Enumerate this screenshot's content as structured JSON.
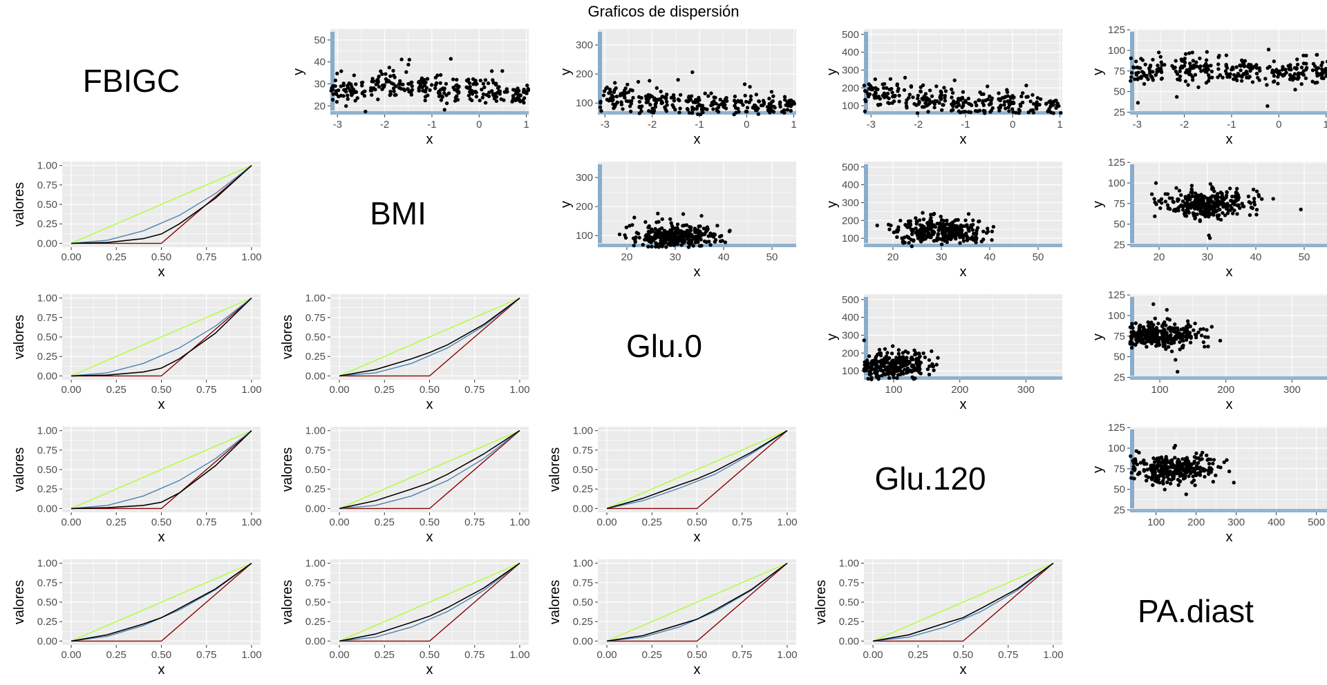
{
  "title": "Graficos de dispersión",
  "variables": [
    "FBIGC",
    "BMI",
    "Glu.0",
    "Glu.120",
    "PA.diast"
  ],
  "colors": {
    "panel_bg": "#EBEBEB",
    "grid": "#FFFFFF",
    "points": "#000000",
    "rug": "#4682B4",
    "line_equality": "#ADFF2F",
    "line_perfect": "#8B0000",
    "line_reference": "#4682B4",
    "line_empirical": "#000000"
  },
  "chart_data": [
    {
      "type": "scatter",
      "panel": "FBIGC-BMI",
      "xlabel": "x",
      "ylabel": "y",
      "x_ticks": [
        "-3",
        "-2",
        "-1",
        "0",
        "1"
      ],
      "y_ticks": [
        "20",
        "30",
        "40",
        "50"
      ],
      "xlim": [
        -3.15,
        1.05
      ],
      "ylim": [
        16,
        55
      ],
      "clusters": [
        {
          "x": -3,
          "y": 27
        },
        {
          "x": -2,
          "y": 30
        },
        {
          "x": -1,
          "y": 28
        },
        {
          "x": 0,
          "y": 27
        },
        {
          "x": 1,
          "y": 25
        }
      ]
    },
    {
      "type": "scatter",
      "panel": "FBIGC-Glu.0",
      "xlabel": "x",
      "ylabel": "y",
      "x_ticks": [
        "-3",
        "-2",
        "-1",
        "0",
        "1"
      ],
      "y_ticks": [
        "100",
        "200",
        "300"
      ],
      "xlim": [
        -3.15,
        1.05
      ],
      "ylim": [
        60,
        355
      ],
      "clusters": [
        {
          "x": -3,
          "y": 110
        },
        {
          "x": -2,
          "y": 100
        },
        {
          "x": -1,
          "y": 95
        },
        {
          "x": 0,
          "y": 90
        },
        {
          "x": 1,
          "y": 85
        }
      ]
    },
    {
      "type": "scatter",
      "panel": "FBIGC-Glu.120",
      "xlabel": "x",
      "ylabel": "y",
      "x_ticks": [
        "-3",
        "-2",
        "-1",
        "0",
        "1"
      ],
      "y_ticks": [
        "100",
        "200",
        "300",
        "400",
        "500"
      ],
      "xlim": [
        -3.15,
        1.05
      ],
      "ylim": [
        50,
        530
      ],
      "clusters": [
        {
          "x": -3,
          "y": 160
        },
        {
          "x": -2,
          "y": 140
        },
        {
          "x": -1,
          "y": 120
        },
        {
          "x": 0,
          "y": 115
        },
        {
          "x": 1,
          "y": 110
        }
      ]
    },
    {
      "type": "scatter",
      "panel": "FBIGC-PA.diast",
      "xlabel": "x",
      "ylabel": "y",
      "x_ticks": [
        "-3",
        "-2",
        "-1",
        "0",
        "1"
      ],
      "y_ticks": [
        "25",
        "50",
        "75",
        "100",
        "125"
      ],
      "xlim": [
        -3.15,
        1.05
      ],
      "ylim": [
        22,
        126
      ],
      "clusters": [
        {
          "x": -3,
          "y": 75
        },
        {
          "x": -2,
          "y": 76
        },
        {
          "x": -1,
          "y": 74
        },
        {
          "x": 0,
          "y": 73
        },
        {
          "x": 1,
          "y": 72
        }
      ]
    },
    {
      "type": "scatter",
      "panel": "BMI-Glu.0",
      "xlabel": "x",
      "ylabel": "y",
      "x_ticks": [
        "20",
        "30",
        "40",
        "50"
      ],
      "y_ticks": [
        "100",
        "200",
        "300"
      ],
      "xlim": [
        14,
        55
      ],
      "ylim": [
        60,
        355
      ],
      "clusters": [
        {
          "x": 30,
          "y": 95
        }
      ]
    },
    {
      "type": "scatter",
      "panel": "BMI-Glu.120",
      "xlabel": "x",
      "ylabel": "y",
      "x_ticks": [
        "20",
        "30",
        "40",
        "50"
      ],
      "y_ticks": [
        "100",
        "200",
        "300",
        "400",
        "500"
      ],
      "xlim": [
        14,
        55
      ],
      "ylim": [
        50,
        530
      ],
      "clusters": [
        {
          "x": 30,
          "y": 140
        }
      ]
    },
    {
      "type": "scatter",
      "panel": "BMI-PA.diast",
      "xlabel": "x",
      "ylabel": "y",
      "x_ticks": [
        "20",
        "30",
        "40",
        "50"
      ],
      "y_ticks": [
        "25",
        "50",
        "75",
        "100",
        "125"
      ],
      "xlim": [
        14,
        55
      ],
      "ylim": [
        22,
        126
      ],
      "clusters": [
        {
          "x": 30,
          "y": 75
        }
      ]
    },
    {
      "type": "scatter",
      "panel": "Glu.0-Glu.120",
      "xlabel": "x",
      "ylabel": "y",
      "x_ticks": [
        "100",
        "200",
        "300"
      ],
      "y_ticks": [
        "100",
        "200",
        "300",
        "400",
        "500"
      ],
      "xlim": [
        55,
        355
      ],
      "ylim": [
        50,
        530
      ],
      "clusters": [
        {
          "x": 95,
          "y": 130
        }
      ]
    },
    {
      "type": "scatter",
      "panel": "Glu.0-PA.diast",
      "xlabel": "x",
      "ylabel": "y",
      "x_ticks": [
        "100",
        "200",
        "300"
      ],
      "y_ticks": [
        "25",
        "50",
        "75",
        "100",
        "125"
      ],
      "xlim": [
        55,
        355
      ],
      "ylim": [
        22,
        126
      ],
      "clusters": [
        {
          "x": 95,
          "y": 76
        }
      ]
    },
    {
      "type": "scatter",
      "panel": "Glu.120-PA.diast",
      "xlabel": "x",
      "ylabel": "y",
      "x_ticks": [
        "100",
        "200",
        "300",
        "400",
        "500"
      ],
      "y_ticks": [
        "25",
        "50",
        "75",
        "100",
        "125"
      ],
      "xlim": [
        35,
        530
      ],
      "ylim": [
        22,
        126
      ],
      "clusters": [
        {
          "x": 140,
          "y": 75
        }
      ]
    },
    {
      "type": "line",
      "panel": "BMI-FBIGC",
      "xlabel": "x",
      "ylabel": "valores",
      "x_ticks": [
        "0.00",
        "0.25",
        "0.50",
        "0.75",
        "1.00"
      ],
      "y_ticks": [
        "0.00",
        "0.25",
        "0.50",
        "0.75",
        "1.00"
      ],
      "xlim": [
        -0.05,
        1.05
      ],
      "ylim": [
        -0.05,
        1.05
      ],
      "series": [
        {
          "x": [
            0,
            1
          ],
          "y": [
            0,
            1
          ]
        },
        {
          "x": [
            0,
            0.5,
            1
          ],
          "y": [
            0,
            0,
            1
          ]
        },
        {
          "x": [
            0,
            0.2,
            0.4,
            0.6,
            0.8,
            1
          ],
          "y": [
            0,
            0.04,
            0.16,
            0.36,
            0.64,
            1
          ]
        },
        {
          "x": [
            0,
            0.2,
            0.4,
            0.5,
            0.6,
            0.8,
            1
          ],
          "y": [
            0,
            0.01,
            0.06,
            0.12,
            0.25,
            0.58,
            1
          ]
        }
      ]
    },
    {
      "type": "line",
      "panel": "Glu.0-FBIGC",
      "xlabel": "x",
      "ylabel": "valores",
      "x_ticks": [
        "0.00",
        "0.25",
        "0.50",
        "0.75",
        "1.00"
      ],
      "y_ticks": [
        "0.00",
        "0.25",
        "0.50",
        "0.75",
        "1.00"
      ],
      "xlim": [
        -0.05,
        1.05
      ],
      "ylim": [
        -0.05,
        1.05
      ],
      "series": [
        {
          "x": [
            0,
            1
          ],
          "y": [
            0,
            1
          ]
        },
        {
          "x": [
            0,
            0.5,
            1
          ],
          "y": [
            0,
            0,
            1
          ]
        },
        {
          "x": [
            0,
            0.2,
            0.4,
            0.6,
            0.8,
            1
          ],
          "y": [
            0,
            0.04,
            0.16,
            0.36,
            0.64,
            1
          ]
        },
        {
          "x": [
            0,
            0.2,
            0.4,
            0.5,
            0.6,
            0.8,
            1
          ],
          "y": [
            0,
            0.01,
            0.05,
            0.1,
            0.22,
            0.55,
            1
          ]
        }
      ]
    },
    {
      "type": "line",
      "panel": "Glu.0-BMI",
      "xlabel": "x",
      "ylabel": "valores",
      "x_ticks": [
        "0.00",
        "0.25",
        "0.50",
        "0.75",
        "1.00"
      ],
      "y_ticks": [
        "0.00",
        "0.25",
        "0.50",
        "0.75",
        "1.00"
      ],
      "xlim": [
        -0.05,
        1.05
      ],
      "ylim": [
        -0.05,
        1.05
      ],
      "series": [
        {
          "x": [
            0,
            1
          ],
          "y": [
            0,
            1
          ]
        },
        {
          "x": [
            0,
            0.5,
            1
          ],
          "y": [
            0,
            0,
            1
          ]
        },
        {
          "x": [
            0,
            0.2,
            0.4,
            0.6,
            0.8,
            1
          ],
          "y": [
            0,
            0.04,
            0.16,
            0.36,
            0.64,
            1
          ]
        },
        {
          "x": [
            0,
            0.2,
            0.4,
            0.5,
            0.6,
            0.8,
            1
          ],
          "y": [
            0,
            0.08,
            0.22,
            0.3,
            0.4,
            0.66,
            1
          ]
        }
      ]
    },
    {
      "type": "line",
      "panel": "Glu.120-FBIGC",
      "xlabel": "x",
      "ylabel": "valores",
      "x_ticks": [
        "0.00",
        "0.25",
        "0.50",
        "0.75",
        "1.00"
      ],
      "y_ticks": [
        "0.00",
        "0.25",
        "0.50",
        "0.75",
        "1.00"
      ],
      "xlim": [
        -0.05,
        1.05
      ],
      "ylim": [
        -0.05,
        1.05
      ],
      "series": [
        {
          "x": [
            0,
            1
          ],
          "y": [
            0,
            1
          ]
        },
        {
          "x": [
            0,
            0.5,
            1
          ],
          "y": [
            0,
            0,
            1
          ]
        },
        {
          "x": [
            0,
            0.2,
            0.4,
            0.6,
            0.8,
            1
          ],
          "y": [
            0,
            0.04,
            0.16,
            0.36,
            0.64,
            1
          ]
        },
        {
          "x": [
            0,
            0.2,
            0.4,
            0.5,
            0.6,
            0.8,
            1
          ],
          "y": [
            0,
            0.01,
            0.04,
            0.08,
            0.2,
            0.55,
            1
          ]
        }
      ]
    },
    {
      "type": "line",
      "panel": "Glu.120-BMI",
      "xlabel": "x",
      "ylabel": "valores",
      "x_ticks": [
        "0.00",
        "0.25",
        "0.50",
        "0.75",
        "1.00"
      ],
      "y_ticks": [
        "0.00",
        "0.25",
        "0.50",
        "0.75",
        "1.00"
      ],
      "xlim": [
        -0.05,
        1.05
      ],
      "ylim": [
        -0.05,
        1.05
      ],
      "series": [
        {
          "x": [
            0,
            1
          ],
          "y": [
            0,
            1
          ]
        },
        {
          "x": [
            0,
            0.5,
            1
          ],
          "y": [
            0,
            0,
            1
          ]
        },
        {
          "x": [
            0,
            0.2,
            0.4,
            0.6,
            0.8,
            1
          ],
          "y": [
            0,
            0.04,
            0.16,
            0.36,
            0.64,
            1
          ]
        },
        {
          "x": [
            0,
            0.2,
            0.4,
            0.5,
            0.6,
            0.8,
            1
          ],
          "y": [
            0,
            0.1,
            0.25,
            0.33,
            0.44,
            0.7,
            1
          ]
        }
      ]
    },
    {
      "type": "line",
      "panel": "Glu.120-Glu.0",
      "xlabel": "x",
      "ylabel": "valores",
      "x_ticks": [
        "0.00",
        "0.25",
        "0.50",
        "0.75",
        "1.00"
      ],
      "y_ticks": [
        "0.00",
        "0.25",
        "0.50",
        "0.75",
        "1.00"
      ],
      "xlim": [
        -0.05,
        1.05
      ],
      "ylim": [
        -0.05,
        1.05
      ],
      "series": [
        {
          "x": [
            0,
            1
          ],
          "y": [
            0,
            1
          ]
        },
        {
          "x": [
            0,
            0.5,
            1
          ],
          "y": [
            0,
            0,
            1
          ]
        },
        {
          "x": [
            0,
            0.2,
            0.4,
            0.6,
            0.8,
            1
          ],
          "y": [
            0,
            0.1,
            0.26,
            0.44,
            0.7,
            1
          ]
        },
        {
          "x": [
            0,
            0.2,
            0.4,
            0.5,
            0.6,
            0.8,
            1
          ],
          "y": [
            0,
            0.13,
            0.3,
            0.38,
            0.48,
            0.72,
            1
          ]
        }
      ]
    },
    {
      "type": "line",
      "panel": "PA.diast-FBIGC",
      "xlabel": "x",
      "ylabel": "valores",
      "x_ticks": [
        "0.00",
        "0.25",
        "0.50",
        "0.75",
        "1.00"
      ],
      "y_ticks": [
        "0.00",
        "0.25",
        "0.50",
        "0.75",
        "1.00"
      ],
      "xlim": [
        -0.05,
        1.05
      ],
      "ylim": [
        -0.05,
        1.05
      ],
      "series": [
        {
          "x": [
            0,
            1
          ],
          "y": [
            0,
            1
          ]
        },
        {
          "x": [
            0,
            0.5,
            1
          ],
          "y": [
            0,
            0,
            1
          ]
        },
        {
          "x": [
            0,
            0.2,
            0.4,
            0.6,
            0.8,
            1
          ],
          "y": [
            0,
            0.06,
            0.2,
            0.4,
            0.66,
            1
          ]
        },
        {
          "x": [
            0,
            0.2,
            0.4,
            0.5,
            0.6,
            0.8,
            1
          ],
          "y": [
            0,
            0.08,
            0.22,
            0.3,
            0.42,
            0.67,
            1
          ]
        }
      ]
    },
    {
      "type": "line",
      "panel": "PA.diast-BMI",
      "xlabel": "x",
      "ylabel": "valores",
      "x_ticks": [
        "0.00",
        "0.25",
        "0.50",
        "0.75",
        "1.00"
      ],
      "y_ticks": [
        "0.00",
        "0.25",
        "0.50",
        "0.75",
        "1.00"
      ],
      "xlim": [
        -0.05,
        1.05
      ],
      "ylim": [
        -0.05,
        1.05
      ],
      "series": [
        {
          "x": [
            0,
            1
          ],
          "y": [
            0,
            1
          ]
        },
        {
          "x": [
            0,
            0.5,
            1
          ],
          "y": [
            0,
            0,
            1
          ]
        },
        {
          "x": [
            0,
            0.2,
            0.4,
            0.6,
            0.8,
            1
          ],
          "y": [
            0,
            0.05,
            0.18,
            0.38,
            0.65,
            1
          ]
        },
        {
          "x": [
            0,
            0.2,
            0.4,
            0.5,
            0.6,
            0.8,
            1
          ],
          "y": [
            0,
            0.09,
            0.24,
            0.32,
            0.43,
            0.68,
            1
          ]
        }
      ]
    },
    {
      "type": "line",
      "panel": "PA.diast-Glu.0",
      "xlabel": "x",
      "ylabel": "valores",
      "x_ticks": [
        "0.00",
        "0.25",
        "0.50",
        "0.75",
        "1.00"
      ],
      "y_ticks": [
        "0.00",
        "0.25",
        "0.50",
        "0.75",
        "1.00"
      ],
      "xlim": [
        -0.05,
        1.05
      ],
      "ylim": [
        -0.05,
        1.05
      ],
      "series": [
        {
          "x": [
            0,
            1
          ],
          "y": [
            0,
            1
          ]
        },
        {
          "x": [
            0,
            0.5,
            1
          ],
          "y": [
            0,
            0,
            1
          ]
        },
        {
          "x": [
            0,
            0.2,
            0.4,
            0.6,
            0.8,
            1
          ],
          "y": [
            0,
            0.05,
            0.18,
            0.38,
            0.65,
            1
          ]
        },
        {
          "x": [
            0,
            0.2,
            0.4,
            0.5,
            0.6,
            0.8,
            1
          ],
          "y": [
            0,
            0.07,
            0.21,
            0.28,
            0.4,
            0.66,
            1
          ]
        }
      ]
    },
    {
      "type": "line",
      "panel": "PA.diast-Glu.120",
      "xlabel": "x",
      "ylabel": "valores",
      "x_ticks": [
        "0.00",
        "0.25",
        "0.50",
        "0.75",
        "1.00"
      ],
      "y_ticks": [
        "0.00",
        "0.25",
        "0.50",
        "0.75",
        "1.00"
      ],
      "xlim": [
        -0.05,
        1.05
      ],
      "ylim": [
        -0.05,
        1.05
      ],
      "series": [
        {
          "x": [
            0,
            1
          ],
          "y": [
            0,
            1
          ]
        },
        {
          "x": [
            0,
            0.5,
            1
          ],
          "y": [
            0,
            0,
            1
          ]
        },
        {
          "x": [
            0,
            0.2,
            0.4,
            0.6,
            0.8,
            1
          ],
          "y": [
            0,
            0.05,
            0.18,
            0.38,
            0.65,
            1
          ]
        },
        {
          "x": [
            0,
            0.2,
            0.4,
            0.5,
            0.6,
            0.8,
            1
          ],
          "y": [
            0,
            0.08,
            0.23,
            0.3,
            0.42,
            0.67,
            1
          ]
        }
      ]
    }
  ]
}
